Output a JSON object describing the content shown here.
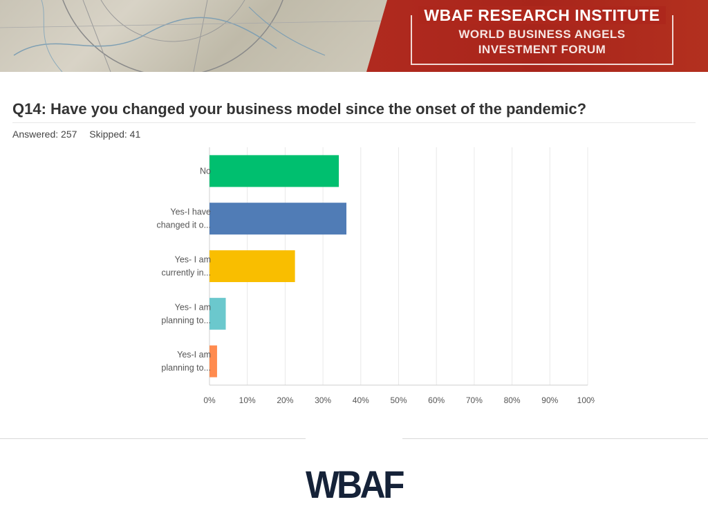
{
  "banner": {
    "title": "WBAF RESEARCH INSTITUTE",
    "subtitle_line1": "WORLD BUSINESS ANGELS",
    "subtitle_line2": "INVESTMENT FORUM"
  },
  "survey": {
    "question": "Q14: Have you changed your business model since the onset of the pandemic?",
    "answered": "Answered: 257",
    "skipped": "Skipped: 41"
  },
  "chart_data": {
    "type": "bar",
    "orientation": "horizontal",
    "categories": [
      [
        "No"
      ],
      [
        "Yes-I have",
        "changed it o..."
      ],
      [
        "Yes- I am",
        "currently in..."
      ],
      [
        "Yes- I am",
        "planning to..."
      ],
      [
        "Yes-I am",
        "planning to..."
      ]
    ],
    "values": [
      34.2,
      36.2,
      22.6,
      4.3,
      2.0
    ],
    "colors": [
      "#00bf6f",
      "#507cb6",
      "#f9be00",
      "#6bc8cd",
      "#ff8b4f"
    ],
    "xlim": [
      0,
      100
    ],
    "xticks": [
      "0%",
      "10%",
      "20%",
      "30%",
      "40%",
      "50%",
      "60%",
      "70%",
      "80%",
      "90%",
      "100%"
    ],
    "grid": true
  },
  "footer": {
    "logo_text": "WBAF"
  }
}
